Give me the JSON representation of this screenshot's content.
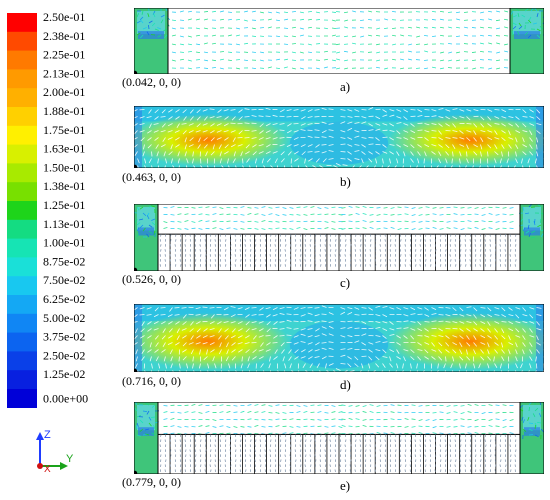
{
  "legend": {
    "labels": [
      "2.50e-01",
      "2.38e-01",
      "2.25e-01",
      "2.13e-01",
      "2.00e-01",
      "1.88e-01",
      "1.75e-01",
      "1.63e-01",
      "1.50e-01",
      "1.38e-01",
      "1.25e-01",
      "1.13e-01",
      "1.00e-01",
      "8.75e-02",
      "7.50e-02",
      "6.25e-02",
      "5.00e-02",
      "3.75e-02",
      "2.50e-02",
      "1.25e-02",
      "0.00e+00"
    ],
    "colors": [
      "#ff0000",
      "#ff4a00",
      "#ff7a00",
      "#ff9a00",
      "#ffb000",
      "#ffd000",
      "#fff000",
      "#d8f000",
      "#a8ea00",
      "#78e000",
      "#1ed41a",
      "#14dc82",
      "#16e4b4",
      "#1ae0d8",
      "#18c8f0",
      "#14a8f4",
      "#1086f4",
      "#0c64f0",
      "#0a40e8",
      "#0820e0",
      "#0000d8"
    ]
  },
  "axes": {
    "z": "Z",
    "x": "X",
    "y": "Y"
  },
  "panels": [
    {
      "coord": "(0.042, 0, 0)",
      "label": "a)",
      "type": "side-boxes"
    },
    {
      "coord": "(0.463, 0, 0)",
      "label": "b)",
      "type": "full-flow"
    },
    {
      "coord": "(0.526, 0, 0)",
      "label": "c)",
      "type": "boxes-grid"
    },
    {
      "coord": "(0.716, 0, 0)",
      "label": "d)",
      "type": "full-flow"
    },
    {
      "coord": "(0.779, 0, 0)",
      "label": "e)",
      "type": "boxes-grid"
    }
  ]
}
